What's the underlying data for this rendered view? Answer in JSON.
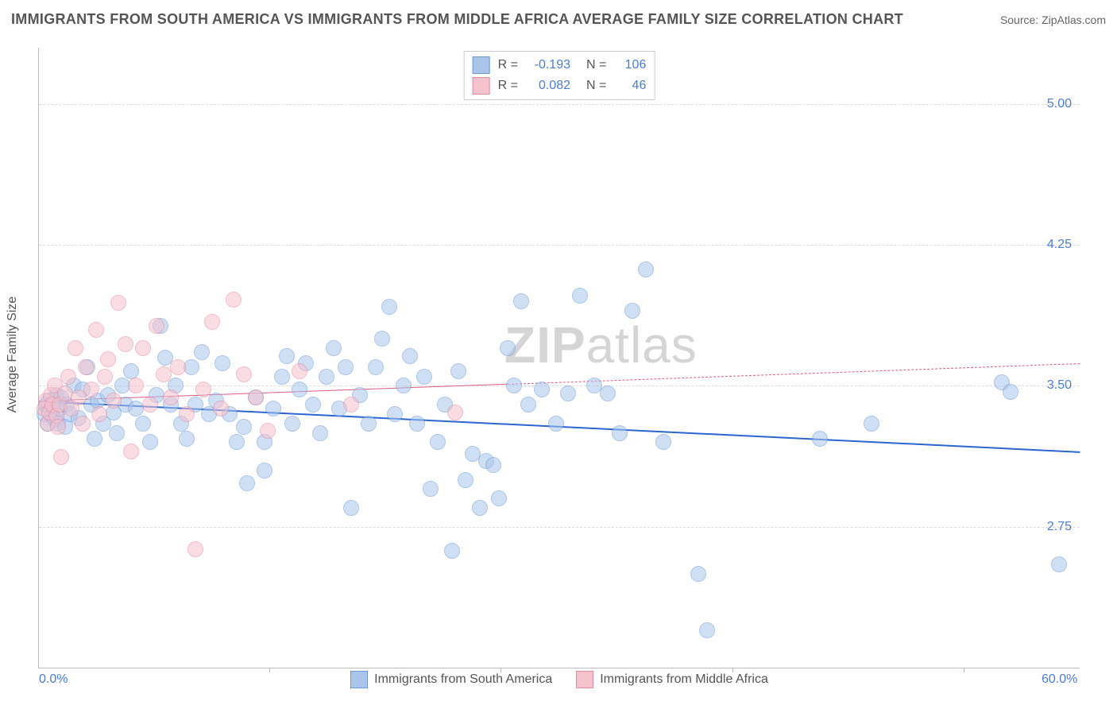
{
  "title": "IMMIGRANTS FROM SOUTH AMERICA VS IMMIGRANTS FROM MIDDLE AFRICA AVERAGE FAMILY SIZE CORRELATION CHART",
  "source": "Source: ZipAtlas.com",
  "watermark_bold": "ZIP",
  "watermark_rest": "atlas",
  "y_axis_title": "Average Family Size",
  "chart": {
    "type": "scatter",
    "xlim": [
      0,
      60
    ],
    "ylim": [
      2.0,
      5.3
    ],
    "x_ticks": [
      {
        "v": 0,
        "label": "0.0%"
      },
      {
        "v": 60,
        "label": "60.0%"
      }
    ],
    "x_minor_ticks": [
      13.3,
      26.6,
      40.0,
      53.3
    ],
    "y_ticks": [
      {
        "v": 2.75,
        "label": "2.75"
      },
      {
        "v": 3.5,
        "label": "3.50"
      },
      {
        "v": 4.25,
        "label": "4.25"
      },
      {
        "v": 5.0,
        "label": "5.00"
      }
    ],
    "background_color": "#ffffff",
    "grid_color": "#dddddd",
    "point_radius": 9,
    "point_opacity": 0.55,
    "series": [
      {
        "name": "Immigrants from South America",
        "color_fill": "#a9c5ec",
        "color_stroke": "#6b9bd8",
        "R": "-0.193",
        "N": "106",
        "trend": {
          "y_at_xmin": 3.42,
          "y_at_xmax": 3.15,
          "color": "#2b66d1",
          "width": 2.5,
          "solid_until_x": 60
        },
        "points": [
          [
            0.3,
            3.35
          ],
          [
            0.4,
            3.4
          ],
          [
            0.5,
            3.3
          ],
          [
            0.6,
            3.42
          ],
          [
            0.7,
            3.37
          ],
          [
            0.8,
            3.34
          ],
          [
            0.9,
            3.32
          ],
          [
            1.0,
            3.45
          ],
          [
            1.1,
            3.3
          ],
          [
            1.2,
            3.38
          ],
          [
            1.3,
            3.44
          ],
          [
            1.5,
            3.28
          ],
          [
            1.6,
            3.4
          ],
          [
            1.8,
            3.35
          ],
          [
            2.0,
            3.5
          ],
          [
            2.3,
            3.33
          ],
          [
            2.5,
            3.48
          ],
          [
            2.8,
            3.6
          ],
          [
            3.0,
            3.4
          ],
          [
            3.2,
            3.22
          ],
          [
            3.4,
            3.42
          ],
          [
            3.7,
            3.3
          ],
          [
            4.0,
            3.45
          ],
          [
            4.3,
            3.36
          ],
          [
            4.5,
            3.25
          ],
          [
            4.8,
            3.5
          ],
          [
            5.0,
            3.4
          ],
          [
            5.3,
            3.58
          ],
          [
            5.6,
            3.38
          ],
          [
            6.0,
            3.3
          ],
          [
            6.4,
            3.2
          ],
          [
            6.8,
            3.45
          ],
          [
            7.0,
            3.82
          ],
          [
            7.3,
            3.65
          ],
          [
            7.6,
            3.4
          ],
          [
            7.9,
            3.5
          ],
          [
            8.2,
            3.3
          ],
          [
            8.5,
            3.22
          ],
          [
            8.8,
            3.6
          ],
          [
            9.0,
            3.4
          ],
          [
            9.4,
            3.68
          ],
          [
            9.8,
            3.35
          ],
          [
            10.2,
            3.42
          ],
          [
            10.6,
            3.62
          ],
          [
            11.0,
            3.35
          ],
          [
            11.4,
            3.2
          ],
          [
            11.8,
            3.28
          ],
          [
            12.0,
            2.98
          ],
          [
            12.5,
            3.44
          ],
          [
            13.0,
            3.2
          ],
          [
            13.5,
            3.38
          ],
          [
            14.0,
            3.55
          ],
          [
            14.3,
            3.66
          ],
          [
            14.6,
            3.3
          ],
          [
            15.0,
            3.48
          ],
          [
            15.4,
            3.62
          ],
          [
            15.8,
            3.4
          ],
          [
            16.2,
            3.25
          ],
          [
            16.6,
            3.55
          ],
          [
            17.0,
            3.7
          ],
          [
            17.3,
            3.38
          ],
          [
            17.7,
            3.6
          ],
          [
            18.0,
            2.85
          ],
          [
            18.5,
            3.45
          ],
          [
            19.0,
            3.3
          ],
          [
            19.4,
            3.6
          ],
          [
            19.8,
            3.75
          ],
          [
            20.2,
            3.92
          ],
          [
            20.5,
            3.35
          ],
          [
            21.0,
            3.5
          ],
          [
            21.4,
            3.66
          ],
          [
            21.8,
            3.3
          ],
          [
            22.2,
            3.55
          ],
          [
            22.6,
            2.95
          ],
          [
            23.0,
            3.2
          ],
          [
            23.4,
            3.4
          ],
          [
            23.8,
            2.62
          ],
          [
            24.2,
            3.58
          ],
          [
            24.6,
            3.0
          ],
          [
            25.0,
            3.14
          ],
          [
            25.4,
            2.85
          ],
          [
            25.8,
            3.1
          ],
          [
            26.2,
            3.08
          ],
          [
            26.5,
            2.9
          ],
          [
            27.0,
            3.7
          ],
          [
            27.4,
            3.5
          ],
          [
            27.8,
            3.95
          ],
          [
            28.2,
            3.4
          ],
          [
            29.0,
            3.48
          ],
          [
            29.8,
            3.3
          ],
          [
            30.5,
            3.46
          ],
          [
            31.2,
            3.98
          ],
          [
            32.0,
            3.5
          ],
          [
            32.8,
            3.46
          ],
          [
            33.5,
            3.25
          ],
          [
            34.2,
            3.9
          ],
          [
            35.0,
            4.12
          ],
          [
            36.0,
            3.2
          ],
          [
            38.0,
            2.5
          ],
          [
            38.5,
            2.2
          ],
          [
            45.0,
            3.22
          ],
          [
            48.0,
            3.3
          ],
          [
            55.5,
            3.52
          ],
          [
            56.0,
            3.47
          ],
          [
            58.8,
            2.55
          ],
          [
            13.0,
            3.05
          ]
        ]
      },
      {
        "name": "Immigrants from Middle Africa",
        "color_fill": "#f5c2cd",
        "color_stroke": "#e78ba2",
        "R": "0.082",
        "N": "46",
        "trend": {
          "y_at_xmin": 3.42,
          "y_at_xmax": 3.62,
          "color": "#e05a80",
          "width": 1.5,
          "solid_until_x": 27
        },
        "points": [
          [
            0.3,
            3.38
          ],
          [
            0.4,
            3.42
          ],
          [
            0.5,
            3.3
          ],
          [
            0.6,
            3.36
          ],
          [
            0.7,
            3.45
          ],
          [
            0.8,
            3.4
          ],
          [
            0.9,
            3.5
          ],
          [
            1.0,
            3.34
          ],
          [
            1.1,
            3.28
          ],
          [
            1.2,
            3.4
          ],
          [
            1.3,
            3.12
          ],
          [
            1.5,
            3.46
          ],
          [
            1.7,
            3.55
          ],
          [
            1.9,
            3.38
          ],
          [
            2.1,
            3.7
          ],
          [
            2.3,
            3.44
          ],
          [
            2.5,
            3.3
          ],
          [
            2.7,
            3.6
          ],
          [
            3.0,
            3.48
          ],
          [
            3.3,
            3.8
          ],
          [
            3.5,
            3.35
          ],
          [
            3.8,
            3.55
          ],
          [
            4.0,
            3.64
          ],
          [
            4.3,
            3.42
          ],
          [
            4.6,
            3.94
          ],
          [
            5.0,
            3.72
          ],
          [
            5.3,
            3.15
          ],
          [
            5.6,
            3.5
          ],
          [
            6.0,
            3.7
          ],
          [
            6.4,
            3.4
          ],
          [
            6.8,
            3.82
          ],
          [
            7.2,
            3.56
          ],
          [
            7.6,
            3.44
          ],
          [
            8.0,
            3.6
          ],
          [
            8.5,
            3.35
          ],
          [
            9.0,
            2.63
          ],
          [
            9.5,
            3.48
          ],
          [
            10.0,
            3.84
          ],
          [
            10.5,
            3.38
          ],
          [
            11.2,
            3.96
          ],
          [
            11.8,
            3.56
          ],
          [
            12.5,
            3.44
          ],
          [
            13.2,
            3.26
          ],
          [
            15.0,
            3.58
          ],
          [
            18.0,
            3.4
          ],
          [
            24.0,
            3.36
          ]
        ]
      }
    ]
  },
  "legend_labels": {
    "R": "R =",
    "N": "N ="
  }
}
